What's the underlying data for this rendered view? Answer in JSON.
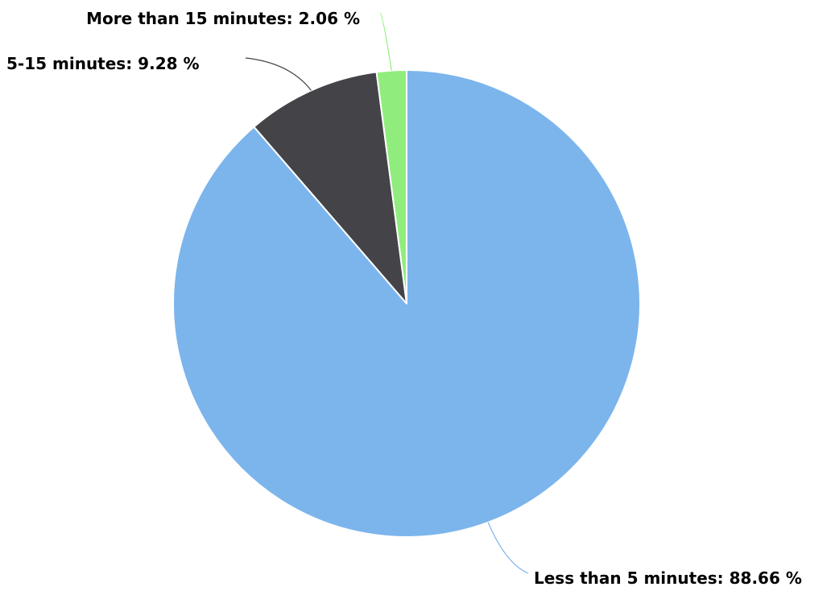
{
  "chart_data": {
    "type": "pie",
    "title": "",
    "categories": [
      "Less than 5 minutes",
      "5-15 minutes",
      "More than 15 minutes"
    ],
    "values": [
      88.66,
      9.28,
      2.06
    ],
    "unit": "%",
    "colors": [
      "#7cb5ec",
      "#434348",
      "#90ed7d"
    ],
    "data_labels": [
      "Less than 5 minutes: 88.66 %",
      "5-15 minutes: 9.28 %",
      "More than 15 minutes: 2.06 %"
    ],
    "start_angle_deg": 0,
    "direction": "clockwise",
    "legend": "none",
    "slice_border_color": "#ffffff"
  }
}
